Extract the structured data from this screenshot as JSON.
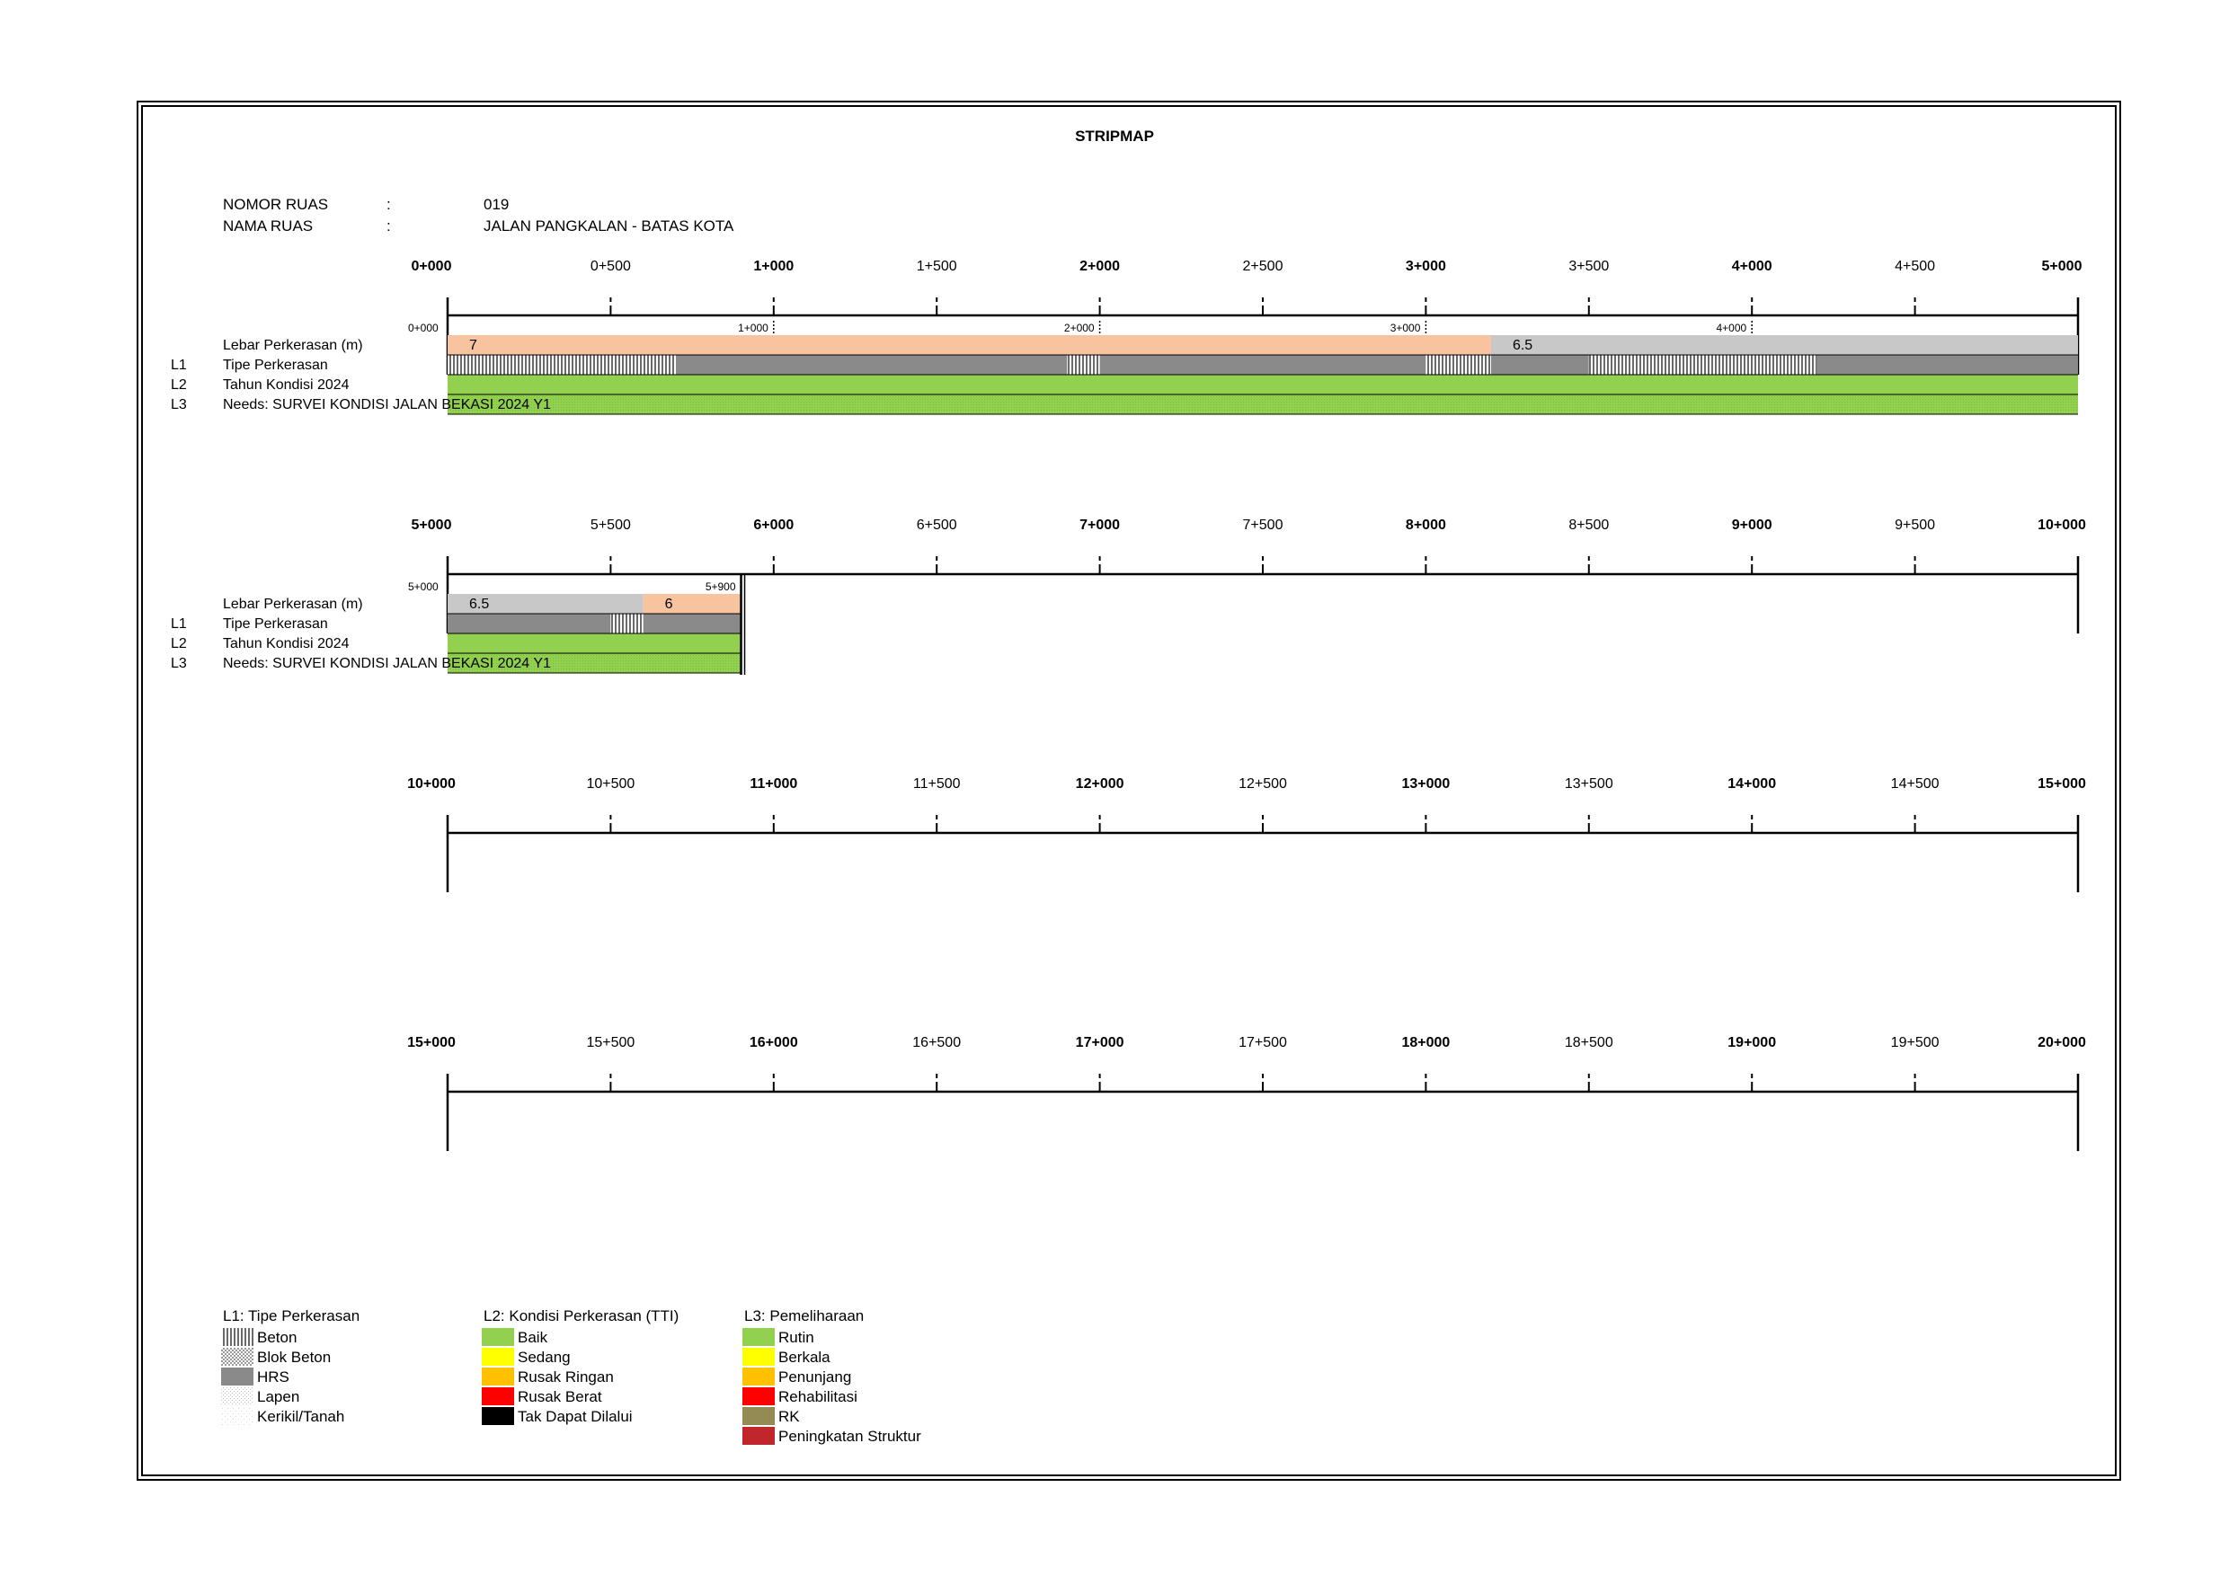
{
  "title": "STRIPMAP",
  "header": {
    "nomor_label": "NOMOR RUAS",
    "nomor_colon": ":",
    "nomor_value": "019",
    "nama_label": "NAMA RUAS",
    "nama_colon": ":",
    "nama_value": "JALAN PANGKALAN - BATAS KOTA"
  },
  "colors": {
    "width_7": "#f8c4a0",
    "width_6": "#f8c4a0",
    "width_6_5": "#c8c8c8",
    "hrs": "#8a8a8a",
    "baik": "#92d050",
    "sedang": "#ffff00",
    "rusak_ringan": "#ffc000",
    "rusak_berat": "#ff0000",
    "tak_dapat": "#000000",
    "rk": "#948a54",
    "peningkatan": "#c0262b"
  },
  "strips": [
    {
      "ruler_labels": [
        "0+000",
        "0+500",
        "1+000",
        "1+500",
        "2+000",
        "2+500",
        "3+000",
        "3+500",
        "4+000",
        "4+500",
        "5+000"
      ],
      "end_km": 5.0,
      "has_data": true,
      "row_labels": {
        "lebar": "Lebar Perkerasan (m)",
        "l1_code": "L1",
        "l1": "Tipe Perkerasan",
        "l2_code": "L2",
        "l2": "Tahun Kondisi 2024",
        "l3_code": "L3",
        "l3": "Needs: SURVEI KONDISI JALAN BEKASI 2024 Y1"
      },
      "minor_labels": [
        {
          "km": 0.0,
          "text": "0+000"
        },
        {
          "km": 1.0,
          "text": "1+000"
        },
        {
          "km": 2.0,
          "text": "2+000"
        },
        {
          "km": 3.0,
          "text": "3+000"
        },
        {
          "km": 4.0,
          "text": "4+000"
        }
      ],
      "width_segments": [
        {
          "from": 0.0,
          "to": 3.2,
          "value": "7",
          "color_key": "width_7"
        },
        {
          "from": 3.2,
          "to": 5.0,
          "value": "6.5",
          "color_key": "width_6_5"
        }
      ],
      "type_segments": [
        {
          "from": 0.0,
          "to": 0.7,
          "type": "Beton"
        },
        {
          "from": 0.7,
          "to": 1.9,
          "type": "HRS"
        },
        {
          "from": 1.9,
          "to": 2.0,
          "type": "Beton"
        },
        {
          "from": 2.0,
          "to": 3.0,
          "type": "HRS"
        },
        {
          "from": 3.0,
          "to": 3.2,
          "type": "Beton"
        },
        {
          "from": 3.2,
          "to": 3.5,
          "type": "HRS"
        },
        {
          "from": 3.5,
          "to": 4.2,
          "type": "Beton"
        },
        {
          "from": 4.2,
          "to": 5.0,
          "type": "HRS"
        }
      ],
      "condition_segments": [
        {
          "from": 0.0,
          "to": 5.0,
          "condition": "Baik"
        }
      ],
      "needs_segments": [
        {
          "from": 0.0,
          "to": 5.0,
          "need": "Rutin"
        }
      ]
    },
    {
      "ruler_labels": [
        "5+000",
        "5+500",
        "6+000",
        "6+500",
        "7+000",
        "7+500",
        "8+000",
        "8+500",
        "9+000",
        "9+500",
        "10+000"
      ],
      "end_km": 5.9,
      "has_data": true,
      "row_labels": {
        "lebar": "Lebar Perkerasan (m)",
        "l1_code": "L1",
        "l1": "Tipe Perkerasan",
        "l2_code": "L2",
        "l2": "Tahun Kondisi 2024",
        "l3_code": "L3",
        "l3": "Needs: SURVEI KONDISI JALAN BEKASI 2024 Y1"
      },
      "minor_labels": [
        {
          "km": 5.0,
          "text": "5+000"
        },
        {
          "km": 5.9,
          "text": "5+900"
        }
      ],
      "width_segments": [
        {
          "from": 5.0,
          "to": 5.6,
          "value": "6.5",
          "color_key": "width_6_5"
        },
        {
          "from": 5.6,
          "to": 5.9,
          "value": "6",
          "color_key": "width_6"
        }
      ],
      "type_segments": [
        {
          "from": 5.0,
          "to": 5.5,
          "type": "HRS"
        },
        {
          "from": 5.5,
          "to": 5.6,
          "type": "Beton"
        },
        {
          "from": 5.6,
          "to": 5.9,
          "type": "HRS"
        }
      ],
      "condition_segments": [
        {
          "from": 5.0,
          "to": 5.9,
          "condition": "Baik"
        }
      ],
      "needs_segments": [
        {
          "from": 5.0,
          "to": 5.9,
          "need": "Rutin"
        }
      ]
    },
    {
      "ruler_labels": [
        "10+000",
        "10+500",
        "11+000",
        "11+500",
        "12+000",
        "12+500",
        "13+000",
        "13+500",
        "14+000",
        "14+500",
        "15+000"
      ],
      "has_data": false
    },
    {
      "ruler_labels": [
        "15+000",
        "15+500",
        "16+000",
        "16+500",
        "17+000",
        "17+500",
        "18+000",
        "18+500",
        "19+000",
        "19+500",
        "20+000"
      ],
      "has_data": false
    }
  ],
  "legend": {
    "l1": {
      "title": "L1: Tipe Perkerasan",
      "items": [
        {
          "label": "Beton",
          "swatch": "beton"
        },
        {
          "label": "Blok Beton",
          "swatch": "blok"
        },
        {
          "label": "HRS",
          "swatch": "hrs"
        },
        {
          "label": "Lapen",
          "swatch": "lapen"
        },
        {
          "label": "Kerikil/Tanah",
          "swatch": "kerikil"
        }
      ]
    },
    "l2": {
      "title": "L2: Kondisi Perkerasan (TTI)",
      "items": [
        {
          "label": "Baik",
          "color": "#92d050"
        },
        {
          "label": "Sedang",
          "color": "#ffff00"
        },
        {
          "label": "Rusak Ringan",
          "color": "#ffc000"
        },
        {
          "label": "Rusak Berat",
          "color": "#ff0000"
        },
        {
          "label": "Tak Dapat Dilalui",
          "color": "#000000"
        }
      ]
    },
    "l3": {
      "title": "L3: Pemeliharaan",
      "items": [
        {
          "label": "Rutin",
          "color": "#92d050"
        },
        {
          "label": "Berkala",
          "color": "#ffff00"
        },
        {
          "label": "Penunjang",
          "color": "#ffc000"
        },
        {
          "label": "Rehabilitasi",
          "color": "#ff0000"
        },
        {
          "label": "RK",
          "color": "#948a54"
        },
        {
          "label": "Peningkatan Struktur",
          "color": "#c0262b"
        }
      ]
    }
  }
}
